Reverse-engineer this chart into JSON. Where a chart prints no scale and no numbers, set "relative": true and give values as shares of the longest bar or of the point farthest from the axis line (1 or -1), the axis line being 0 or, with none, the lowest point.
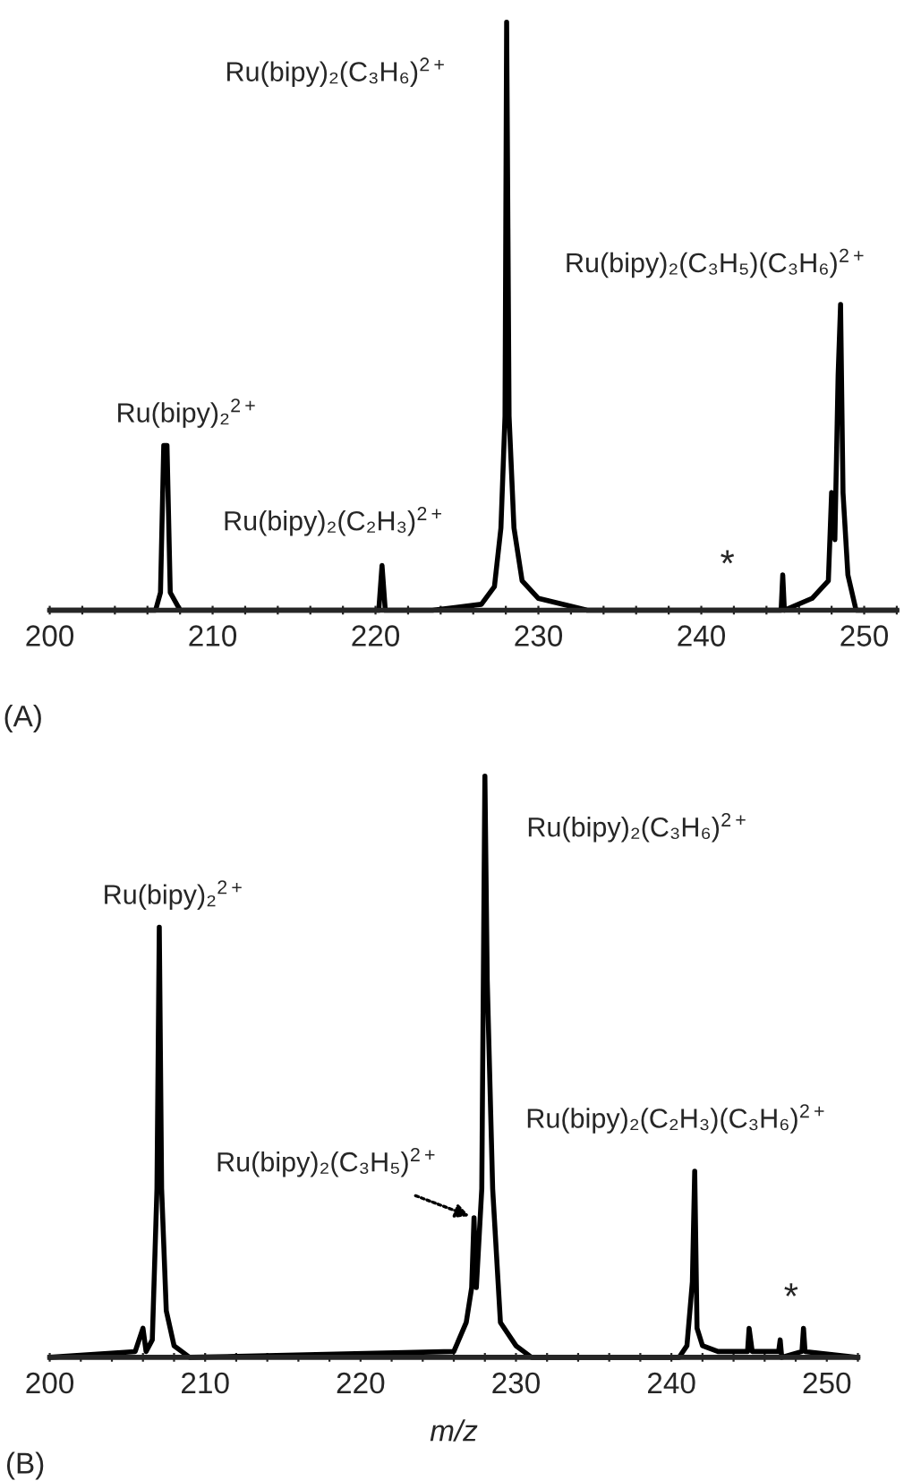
{
  "chart_data": [
    {
      "type": "line",
      "relative": true,
      "xlim": [
        200,
        252
      ],
      "xticks": [
        200,
        {
          "value": 202,
          "label": null
        },
        {
          "value": 204,
          "label": null
        },
        {
          "value": 206,
          "label": null
        },
        {
          "value": 208,
          "label": null
        },
        210,
        {
          "value": 212,
          "label": null
        },
        {
          "value": 214,
          "label": null
        },
        {
          "value": 216,
          "label": null
        },
        {
          "value": 218,
          "label": null
        },
        220,
        {
          "value": 222,
          "label": null
        },
        {
          "value": 224,
          "label": null
        },
        {
          "value": 226,
          "label": null
        },
        {
          "value": 228,
          "label": null
        },
        230,
        {
          "value": 232,
          "label": null
        },
        {
          "value": 234,
          "label": null
        },
        {
          "value": 236,
          "label": null
        },
        {
          "value": 238,
          "label": null
        },
        240,
        {
          "value": 242,
          "label": null
        },
        {
          "value": 244,
          "label": null
        },
        {
          "value": 246,
          "label": null
        },
        {
          "value": 248,
          "label": null
        },
        250,
        {
          "value": 252,
          "label": null
        }
      ],
      "tick_labels": "x",
      "grid": false,
      "legend": false,
      "series": [
        {
          "color": "#000000",
          "x": [
            200,
            206.5,
            206.8,
            207.0,
            207.2,
            207.4,
            208,
            220.2,
            220.4,
            220.6,
            223.5,
            226.5,
            227.3,
            227.7,
            227.95,
            228.05,
            228.2,
            228.5,
            229,
            230,
            233,
            244.9,
            245,
            245.1,
            246.8,
            247.8,
            248.0,
            248.2,
            248.4,
            248.55,
            248.7,
            249,
            249.5,
            252
          ],
          "values": [
            0,
            0,
            0.03,
            0.28,
            0.28,
            0.03,
            0,
            0,
            0.076,
            0,
            0,
            0.01,
            0.04,
            0.14,
            0.33,
            1.0,
            0.33,
            0.14,
            0.05,
            0.02,
            0,
            0,
            0.06,
            0,
            0.02,
            0.05,
            0.2,
            0.12,
            0.4,
            0.52,
            0.2,
            0.06,
            0,
            0
          ]
        }
      ],
      "annotations": [
        {
          "text": "Ru(bipy)₂$^{2+}$",
          "x": 207.1,
          "y": 0.28
        },
        {
          "text": "Ru(bipy)₂(C₂H₃)$^{2+}$",
          "x": 220.4,
          "y": 0.076
        },
        {
          "text": "Ru(bipy)₂(C₃H₆)$^{2+}$",
          "x": 228.05,
          "y": 1.0
        },
        {
          "text": "Ru(bipy)₂(C₃H₅)(C₃H₆)$^{2+}$",
          "x": 248.55,
          "y": 0.52
        },
        "*",
        "(A)"
      ]
    },
    {
      "type": "line",
      "relative": true,
      "xlim": [
        200,
        252
      ],
      "xlabel": "m/z",
      "xticks": [
        200,
        {
          "value": 202,
          "label": null
        },
        {
          "value": 204,
          "label": null
        },
        {
          "value": 206,
          "label": null
        },
        {
          "value": 208,
          "label": null
        },
        210,
        {
          "value": 212,
          "label": null
        },
        {
          "value": 214,
          "label": null
        },
        {
          "value": 216,
          "label": null
        },
        {
          "value": 218,
          "label": null
        },
        220,
        {
          "value": 222,
          "label": null
        },
        {
          "value": 224,
          "label": null
        },
        {
          "value": 226,
          "label": null
        },
        {
          "value": 228,
          "label": null
        },
        230,
        {
          "value": 232,
          "label": null
        },
        {
          "value": 234,
          "label": null
        },
        {
          "value": 236,
          "label": null
        },
        {
          "value": 238,
          "label": null
        },
        240,
        {
          "value": 242,
          "label": null
        },
        {
          "value": 244,
          "label": null
        },
        {
          "value": 246,
          "label": null
        },
        {
          "value": 248,
          "label": null
        },
        250,
        {
          "value": 252,
          "label": null
        }
      ],
      "tick_labels": "x",
      "grid": false,
      "legend": false,
      "series": [
        {
          "color": "#000000",
          "x": [
            200,
            205.5,
            206.0,
            206.2,
            206.6,
            206.9,
            207.05,
            207.2,
            207.5,
            208,
            209,
            226,
            226.8,
            227.15,
            227.3,
            227.45,
            227.8,
            228.0,
            228.15,
            228.5,
            229,
            230,
            231,
            240.5,
            241,
            241.35,
            241.5,
            241.65,
            242,
            243,
            244.9,
            245,
            245.2,
            246.9,
            247,
            247.1,
            248.4,
            248.5,
            248.6,
            252
          ],
          "values": [
            0,
            0.01,
            0.05,
            0.01,
            0.03,
            0.29,
            0.74,
            0.29,
            0.08,
            0.02,
            0,
            0.01,
            0.06,
            0.12,
            0.24,
            0.12,
            0.29,
            1.0,
            0.65,
            0.29,
            0.06,
            0.02,
            0,
            0,
            0.02,
            0.13,
            0.32,
            0.05,
            0.02,
            0.01,
            0.01,
            0.05,
            0.01,
            0.01,
            0.03,
            0,
            0.01,
            0.05,
            0.01,
            0
          ]
        }
      ],
      "annotations": [
        {
          "text": "Ru(bipy)₂$^{2+}$",
          "x": 207.05,
          "y": 0.74
        },
        {
          "text": "Ru(bipy)₂(C₃H₅)$^{2+}$",
          "x": 227.3,
          "y": 0.24
        },
        {
          "text": "Ru(bipy)₂(C₃H₆)$^{2+}$",
          "x": 228.0,
          "y": 1.0
        },
        {
          "text": "Ru(bipy)₂(C₂H₃)(C₃H₆)$^{2+}$",
          "x": 241.5,
          "y": 0.32
        },
        "*",
        "(B)"
      ]
    }
  ]
}
